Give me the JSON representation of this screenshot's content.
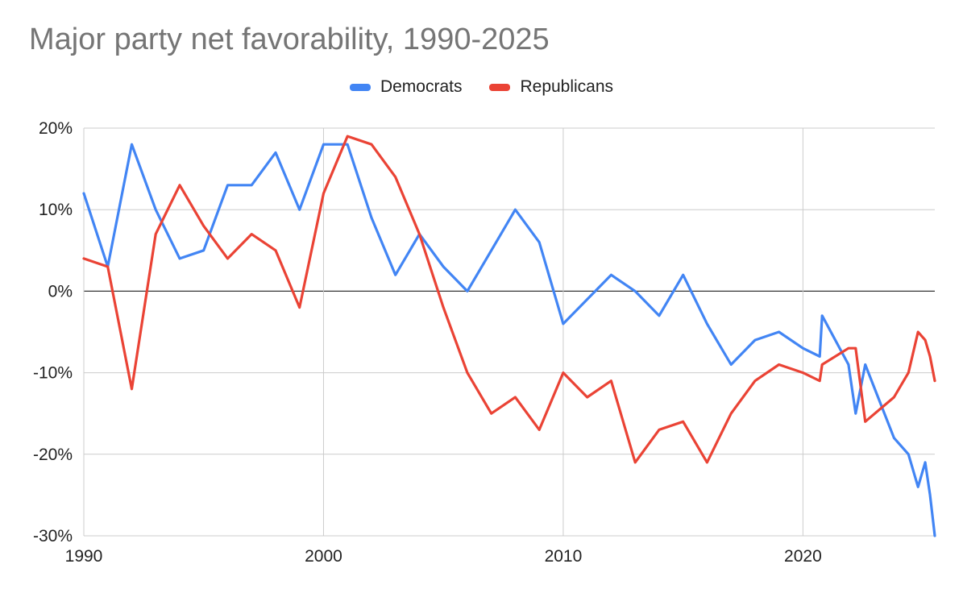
{
  "chart_data": {
    "type": "line",
    "title": "Major party net favorability, 1990-2025",
    "xlabel": "",
    "ylabel": "",
    "xlim": [
      1990,
      2025.5
    ],
    "ylim": [
      -30,
      20
    ],
    "x_ticks": [
      1990,
      2000,
      2010,
      2020
    ],
    "x_tick_labels": [
      "1990",
      "2000",
      "2010",
      "2020"
    ],
    "y_ticks": [
      20,
      10,
      0,
      -10,
      -20,
      -30
    ],
    "y_tick_labels": [
      "20%",
      "10%",
      "0%",
      "-10%",
      "-20%",
      "-30%"
    ],
    "grid": true,
    "legend_position": "top-center",
    "series": [
      {
        "name": "Democrats",
        "color": "#4285f4",
        "x": [
          1990,
          1991,
          1992,
          1993,
          1994,
          1995,
          1996,
          1997,
          1998,
          1999,
          2000,
          2001,
          2002,
          2003,
          2004,
          2005,
          2006,
          2007,
          2008,
          2009,
          2010,
          2011,
          2012,
          2013,
          2014,
          2015,
          2016,
          2017,
          2018,
          2019,
          2020,
          2020.7,
          2020.8,
          2021.9,
          2022.2,
          2022.6,
          2023.8,
          2024.4,
          2024.8,
          2025.1,
          2025.3,
          2025.5
        ],
        "y": [
          12,
          3,
          18,
          10,
          4,
          5,
          13,
          13,
          17,
          10,
          18,
          18,
          9,
          2,
          7,
          3,
          0,
          5,
          10,
          6,
          -4,
          -1,
          2,
          0,
          -3,
          2,
          -4,
          -9,
          -6,
          -5,
          -7,
          -8,
          -3,
          -9,
          -15,
          -9,
          -18,
          -20,
          -24,
          -21,
          -25,
          -30
        ]
      },
      {
        "name": "Republicans",
        "color": "#ea4335",
        "x": [
          1990,
          1991,
          1992,
          1993,
          1994,
          1995,
          1996,
          1997,
          1998,
          1999,
          2000,
          2001,
          2002,
          2003,
          2004,
          2005,
          2006,
          2007,
          2008,
          2009,
          2010,
          2011,
          2012,
          2013,
          2014,
          2015,
          2016,
          2017,
          2018,
          2019,
          2020,
          2020.7,
          2020.8,
          2021.9,
          2022.2,
          2022.6,
          2023.8,
          2024.4,
          2024.8,
          2025.1,
          2025.3,
          2025.5
        ],
        "y": [
          4,
          3,
          -12,
          7,
          13,
          8,
          4,
          7,
          5,
          -2,
          12,
          19,
          18,
          14,
          7,
          -2,
          -10,
          -15,
          -13,
          -17,
          -10,
          -13,
          -11,
          -21,
          -17,
          -16,
          -21,
          -15,
          -11,
          -9,
          -10,
          -11,
          -9,
          -7,
          -7,
          -16,
          -13,
          -10,
          -5,
          -6,
          -8,
          -11
        ]
      }
    ]
  }
}
